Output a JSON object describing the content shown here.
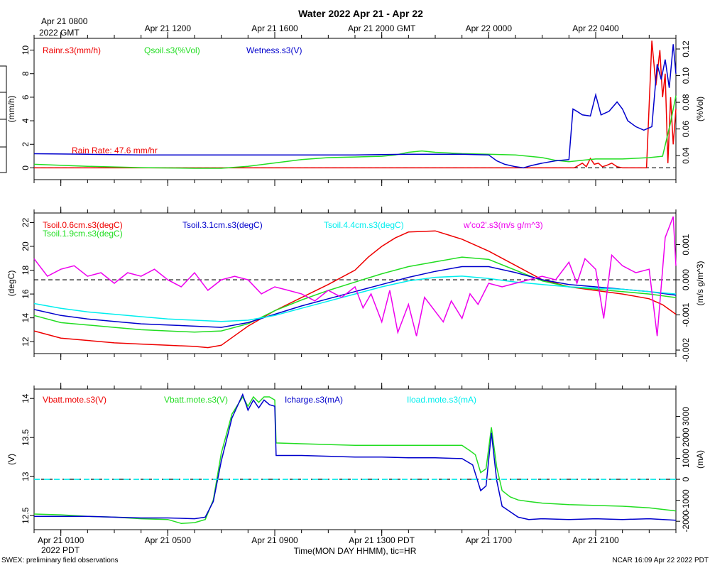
{
  "title": "Water 2022 Apr 21 - Apr 22",
  "top_axis": {
    "year_label_1": "Apr 21 0800",
    "year_label_2": "2022 GMT",
    "ticks": [
      "Apr 21 1200",
      "Apr 21 1600",
      "Apr 21 2000 GMT",
      "Apr 22 0000",
      "Apr 22 0400"
    ]
  },
  "bottom_axis": {
    "ticks": [
      "Apr 21 0100",
      "Apr 21 0500",
      "Apr 21 0900",
      "Apr 21 1300 PDT",
      "Apr 21 1700",
      "Apr 21 2100"
    ],
    "year_label": "2022 PDT",
    "xlabel": "Time(MON DAY HHMM), tic=HR"
  },
  "footer_left": "SWEX: preliminary field observations",
  "footer_right": "NCAR 16:09 Apr 22 2022 PDT",
  "colors": {
    "red": "#ee0000",
    "green": "#22dd22",
    "blue": "#0000cc",
    "cyan": "#00eeee",
    "magenta": "#ee00ee",
    "black": "#000000"
  },
  "chart_data": [
    {
      "type": "line",
      "name": "water",
      "x_range_hours": [
        0,
        24
      ],
      "x_tick_hours": [
        1,
        5,
        9,
        13,
        17,
        21
      ],
      "left_axis": {
        "label": "(mm/h)",
        "ylim": [
          -1,
          11
        ],
        "ticks": [
          0,
          2,
          4,
          6,
          8,
          10
        ]
      },
      "right_axis": {
        "label": "(%Vol)",
        "ylim": [
          0.022,
          0.128
        ],
        "ticks": [
          0.04,
          0.06,
          0.08,
          0.1,
          0.12
        ]
      },
      "zero_line": 0,
      "annotation": "Rain Rate: 47.6 mm/hr",
      "series": [
        {
          "name": "Rainr.s3(mm/h)",
          "color": "red",
          "axis": "left",
          "x": [
            0,
            20.2,
            20.35,
            20.5,
            20.65,
            20.8,
            20.95,
            21.1,
            21.25,
            21.4,
            21.6,
            21.8,
            22.0,
            22.9,
            23.1,
            23.25,
            23.4,
            23.5,
            23.6,
            23.7,
            23.8,
            23.9,
            24
          ],
          "values": [
            0,
            0,
            0.2,
            0.4,
            0.1,
            0.8,
            0.3,
            0.4,
            0.1,
            0.2,
            0.4,
            0.1,
            0,
            0,
            10.8,
            7,
            10,
            6,
            8,
            0.4,
            6,
            2,
            5
          ]
        },
        {
          "name": "Qsoil.s3(%Vol)",
          "color": "green",
          "axis": "right",
          "x": [
            0,
            2,
            4,
            6,
            7,
            8,
            9,
            10,
            11,
            12,
            13,
            13.5,
            14,
            14.5,
            15,
            16,
            17,
            18,
            19,
            19.5,
            20,
            20.5,
            21,
            22,
            23,
            23.5,
            23.8,
            24
          ],
          "values": [
            0.0335,
            0.032,
            0.031,
            0.0305,
            0.0305,
            0.032,
            0.0345,
            0.037,
            0.0385,
            0.039,
            0.0395,
            0.0405,
            0.0425,
            0.0435,
            0.0425,
            0.0415,
            0.041,
            0.0405,
            0.0385,
            0.0365,
            0.0355,
            0.0365,
            0.0375,
            0.0375,
            0.0385,
            0.0395,
            0.065,
            0.085
          ]
        },
        {
          "name": "Wetness.s3(V)",
          "color": "blue",
          "axis": "left",
          "x": [
            0,
            2,
            4,
            6,
            8,
            10,
            12,
            14,
            16,
            17.0,
            17.3,
            17.6,
            18.0,
            18.3,
            18.6,
            19.0,
            19.5,
            20.0,
            20.15,
            20.3,
            20.5,
            20.8,
            21.0,
            21.2,
            21.5,
            21.8,
            22.0,
            22.2,
            22.5,
            22.8,
            23.1,
            23.3,
            23.45,
            23.6,
            23.75,
            23.9,
            24
          ],
          "values": [
            1.2,
            1.15,
            1.1,
            1.1,
            1.1,
            1.1,
            1.1,
            1.15,
            1.15,
            1.1,
            0.6,
            0.3,
            0.1,
            0.0,
            0.2,
            0.4,
            0.6,
            0.7,
            5.0,
            4.8,
            4.5,
            4.4,
            6.2,
            4.5,
            4.8,
            5.6,
            5.0,
            4.0,
            3.5,
            3.2,
            3.5,
            8.8,
            7.5,
            9.2,
            6.8,
            10.5,
            8.0
          ]
        }
      ]
    },
    {
      "type": "line",
      "name": "soil temperature",
      "x_range_hours": [
        0,
        24
      ],
      "left_axis": {
        "label": "(degC)",
        "ylim": [
          11,
          22.8
        ],
        "ticks": [
          12,
          14,
          16,
          18,
          20,
          22
        ]
      },
      "right_axis": {
        "label": "(m/s g/m^3)",
        "ylim": [
          -0.0021,
          0.0019
        ],
        "ticks": [
          -0.002,
          -0.001,
          0.0,
          0.001
        ]
      },
      "zero_line": 0,
      "series": [
        {
          "name": "Tsoil.0.6cm.s3(degC)",
          "color": "red",
          "axis": "left",
          "x": [
            0,
            1,
            2,
            3,
            4,
            5,
            6,
            6.5,
            7.0,
            7.5,
            8,
            9,
            10,
            11,
            12,
            12.5,
            13,
            13.5,
            14,
            15,
            16,
            17,
            18,
            19,
            20,
            21,
            22,
            23,
            23.5,
            24
          ],
          "values": [
            12.9,
            12.3,
            12.1,
            11.9,
            11.8,
            11.7,
            11.6,
            11.5,
            11.7,
            12.5,
            13.3,
            14.6,
            15.7,
            16.8,
            18.0,
            19.1,
            20.0,
            20.7,
            21.2,
            21.3,
            20.6,
            19.6,
            18.4,
            17.2,
            16.6,
            16.3,
            16.0,
            15.6,
            15.1,
            14.3
          ]
        },
        {
          "name": "Tsoil.1.9cm.s3(degC)",
          "color": "green",
          "axis": "left",
          "x": [
            0,
            1,
            2,
            3,
            4,
            5,
            6,
            7,
            8,
            9,
            10,
            11,
            12,
            13,
            14,
            15,
            16,
            17,
            18,
            19,
            20,
            21,
            22,
            23,
            24
          ],
          "values": [
            14.2,
            13.6,
            13.4,
            13.2,
            13.0,
            12.9,
            12.8,
            12.9,
            13.5,
            14.6,
            15.5,
            16.3,
            17.0,
            17.7,
            18.3,
            18.7,
            19.1,
            18.9,
            18.0,
            17.1,
            16.6,
            16.4,
            16.2,
            16.0,
            15.7
          ]
        },
        {
          "name": "Tsoil.3.1cm.s3(degC)",
          "color": "blue",
          "axis": "left",
          "x": [
            0,
            1,
            2,
            3,
            4,
            5,
            6,
            7,
            8,
            9,
            10,
            11,
            12,
            13,
            14,
            15,
            16,
            17,
            18,
            19,
            20,
            21,
            22,
            23,
            24
          ],
          "values": [
            14.7,
            14.2,
            13.9,
            13.7,
            13.5,
            13.4,
            13.3,
            13.2,
            13.6,
            14.3,
            15.0,
            15.6,
            16.2,
            16.8,
            17.4,
            17.9,
            18.3,
            18.3,
            17.8,
            17.2,
            16.8,
            16.6,
            16.4,
            16.2,
            15.9
          ]
        },
        {
          "name": "Tsoil.4.4cm.s3(degC)",
          "color": "cyan",
          "axis": "left",
          "x": [
            0,
            1,
            2,
            3,
            4,
            5,
            6,
            7,
            8,
            9,
            10,
            11,
            12,
            13,
            14,
            15,
            16,
            17,
            18,
            19,
            20,
            21,
            22,
            23,
            24
          ],
          "values": [
            15.2,
            14.8,
            14.5,
            14.3,
            14.1,
            13.9,
            13.8,
            13.7,
            13.8,
            14.2,
            14.8,
            15.4,
            16.0,
            16.6,
            17.1,
            17.4,
            17.5,
            17.3,
            17.0,
            16.8,
            16.6,
            16.5,
            16.4,
            16.2,
            16.0
          ]
        },
        {
          "name": "w'co2'.s3(m/s g/m^3)",
          "color": "magenta",
          "axis": "right",
          "x": [
            0,
            0.5,
            1,
            1.5,
            2,
            2.5,
            3,
            3.5,
            4,
            4.5,
            5,
            5.5,
            6,
            6.5,
            7,
            7.5,
            8,
            8.5,
            9,
            9.5,
            10,
            10.5,
            11,
            11.5,
            12,
            12.3,
            12.6,
            13,
            13.3,
            13.6,
            14,
            14.3,
            14.6,
            15,
            15.3,
            15.6,
            16,
            16.3,
            16.6,
            17,
            17.5,
            18,
            18.5,
            19,
            19.5,
            20,
            20.3,
            20.6,
            21,
            21.3,
            21.6,
            22,
            22.5,
            23,
            23.3,
            23.6,
            23.9,
            24
          ],
          "values": [
            0.0006,
            0.0001,
            0.0003,
            0.0004,
            0.0001,
            0.0002,
            -0.0001,
            0.0002,
            0.0001,
            0.0003,
            0.0,
            -0.0002,
            0.0002,
            -0.0003,
            0.0,
            0.0001,
            0.0,
            -0.0004,
            -0.0002,
            -0.0003,
            -0.0004,
            -0.0006,
            -0.0003,
            -0.0005,
            -0.0002,
            -0.0008,
            -0.0004,
            -0.0012,
            -0.0003,
            -0.0015,
            -0.0007,
            -0.0016,
            -0.0005,
            -0.0009,
            -0.0012,
            -0.0006,
            -0.0011,
            -0.0004,
            -0.0007,
            -0.0001,
            -0.0002,
            -0.0001,
            0.0,
            0.0001,
            0.0,
            0.0005,
            -0.0001,
            0.0006,
            0.0003,
            -0.0011,
            0.0007,
            0.0004,
            0.0002,
            0.0003,
            -0.0016,
            0.0012,
            0.0018,
            0.0004
          ]
        }
      ]
    },
    {
      "type": "line",
      "name": "power",
      "x_range_hours": [
        0,
        24
      ],
      "left_axis": {
        "label": "(V)",
        "ylim": [
          12.32,
          14.12
        ],
        "ticks": [
          12.5,
          13.0,
          13.5,
          14.0
        ]
      },
      "right_axis": {
        "label": "(mA)",
        "ylim": [
          -2400,
          4300
        ],
        "ticks": [
          -2000,
          -1000,
          0,
          1000,
          2000,
          3000
        ]
      },
      "zero_line": 0,
      "series": [
        {
          "name": "Vbatt.mote.s3(V)",
          "color": "red",
          "axis": "left",
          "x": [],
          "values": []
        },
        {
          "name": "Vbatt.mote.s3(V)",
          "color": "green",
          "axis": "left",
          "x": [
            0,
            1,
            2,
            3,
            4,
            5,
            5.5,
            6,
            6.4,
            6.7,
            7.0,
            7.4,
            7.8,
            8.0,
            8.2,
            8.4,
            8.6,
            8.8,
            9.0,
            9.05,
            10,
            11,
            12,
            13,
            14,
            15,
            16,
            16.3,
            16.5,
            16.7,
            16.9,
            17.1,
            17.3,
            17.5,
            17.8,
            18.1,
            18.5,
            19,
            20,
            21,
            22,
            23,
            24
          ],
          "values": [
            12.52,
            12.51,
            12.49,
            12.48,
            12.46,
            12.45,
            12.4,
            12.41,
            12.45,
            12.7,
            13.3,
            13.8,
            14.02,
            13.9,
            14.02,
            13.95,
            14.02,
            14.02,
            13.98,
            13.43,
            13.42,
            13.41,
            13.4,
            13.4,
            13.4,
            13.4,
            13.4,
            13.33,
            13.28,
            13.05,
            13.1,
            13.63,
            13.12,
            12.82,
            12.74,
            12.7,
            12.68,
            12.66,
            12.64,
            12.63,
            12.62,
            12.6,
            12.56
          ]
        },
        {
          "name": "Icharge.s3(mA)",
          "color": "blue",
          "axis": "left",
          "x": [
            0,
            1,
            2,
            3,
            4,
            5,
            6,
            6.4,
            6.7,
            7.0,
            7.4,
            7.8,
            8.0,
            8.2,
            8.4,
            8.6,
            8.8,
            9.0,
            9.05,
            10,
            11,
            12,
            13,
            14,
            15,
            16,
            16.4,
            16.7,
            16.9,
            17.1,
            17.3,
            17.5,
            17.8,
            18.1,
            18.5,
            19,
            20,
            21,
            22,
            23,
            24
          ],
          "values": [
            12.49,
            12.49,
            12.49,
            12.48,
            12.47,
            12.47,
            12.46,
            12.48,
            12.68,
            13.2,
            13.75,
            14.05,
            13.85,
            13.98,
            13.88,
            13.98,
            13.92,
            13.9,
            13.27,
            13.27,
            13.26,
            13.25,
            13.25,
            13.24,
            13.24,
            13.23,
            13.15,
            12.82,
            12.88,
            13.56,
            12.95,
            12.62,
            12.55,
            12.48,
            12.45,
            12.46,
            12.45,
            12.46,
            12.45,
            12.46,
            12.44
          ]
        },
        {
          "name": "Iload.mote.s3(mA)",
          "color": "cyan",
          "axis": "right",
          "x": [
            0,
            24
          ],
          "values": [
            0,
            0
          ]
        }
      ]
    }
  ]
}
